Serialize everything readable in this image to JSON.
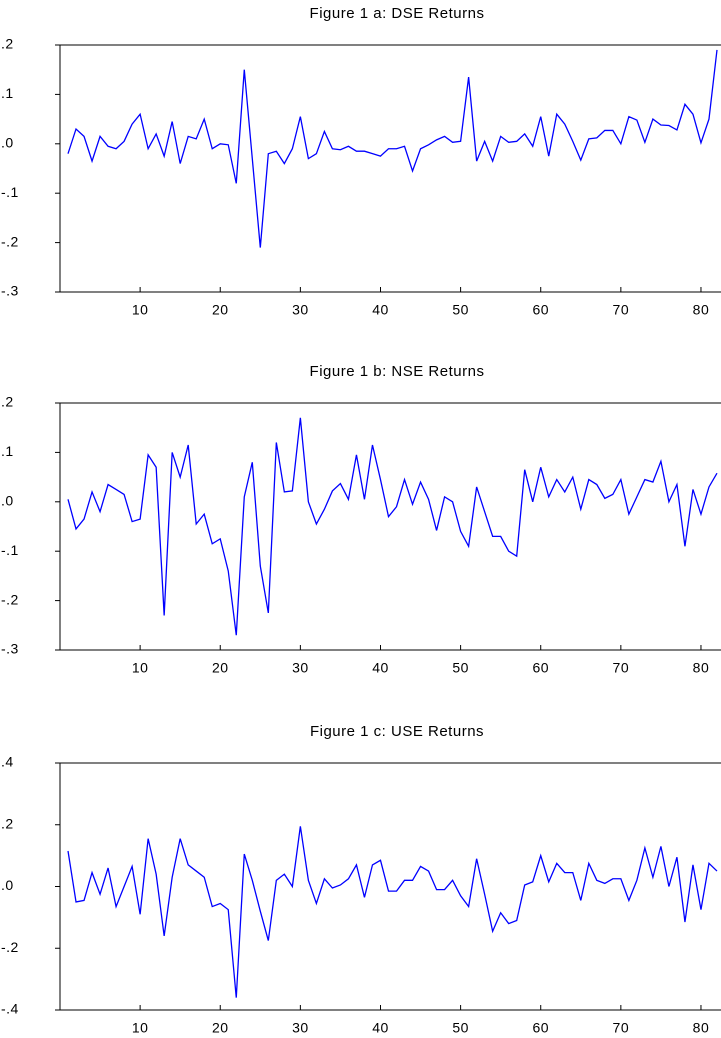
{
  "chart_data": [
    {
      "type": "line",
      "title": "Figure 1 a: DSE Returns",
      "x": [
        1,
        2,
        3,
        4,
        5,
        6,
        7,
        8,
        9,
        10,
        11,
        12,
        13,
        14,
        15,
        16,
        17,
        18,
        19,
        20,
        21,
        22,
        23,
        24,
        25,
        26,
        27,
        28,
        29,
        30,
        31,
        32,
        33,
        34,
        35,
        36,
        37,
        38,
        39,
        40,
        41,
        42,
        43,
        44,
        45,
        46,
        47,
        48,
        49,
        50,
        51,
        52,
        53,
        54,
        55,
        56,
        57,
        58,
        59,
        60,
        61,
        62,
        63,
        64,
        65,
        66,
        67,
        68,
        69,
        70,
        71,
        72,
        73,
        74,
        75,
        76,
        77,
        78,
        79,
        80,
        81,
        82
      ],
      "series": [
        {
          "name": "DSE",
          "color": "#0000ff",
          "values": [
            -0.02,
            0.03,
            0.015,
            -0.035,
            0.015,
            -0.005,
            -0.01,
            0.005,
            0.04,
            0.06,
            -0.01,
            0.02,
            -0.025,
            0.045,
            -0.04,
            0.015,
            0.01,
            0.05,
            -0.01,
            0.0,
            -0.002,
            -0.08,
            0.15,
            -0.03,
            -0.21,
            -0.02,
            -0.015,
            -0.04,
            -0.01,
            0.055,
            -0.03,
            -0.02,
            0.025,
            -0.01,
            -0.012,
            -0.005,
            -0.015,
            -0.015,
            -0.02,
            -0.025,
            -0.01,
            -0.01,
            -0.005,
            -0.055,
            -0.01,
            -0.002,
            0.008,
            0.015,
            0.003,
            0.005,
            0.135,
            -0.035,
            0.005,
            -0.035,
            0.015,
            0.003,
            0.005,
            0.02,
            -0.005,
            0.055,
            -0.025,
            0.06,
            0.04,
            0.005,
            -0.033,
            0.01,
            0.012,
            0.027,
            0.027,
            0.0,
            0.055,
            0.048,
            0.003,
            0.05,
            0.038,
            0.037,
            0.028,
            0.08,
            0.06,
            0.002,
            0.05,
            0.19
          ]
        }
      ],
      "xlim": [
        0,
        82.5
      ],
      "xticks": [
        10,
        20,
        30,
        40,
        50,
        60,
        70,
        80
      ],
      "ylim": [
        -0.3,
        0.2
      ],
      "yticks": [
        {
          "value": -0.3,
          "label": "-.3"
        },
        {
          "value": -0.2,
          "label": "-.2"
        },
        {
          "value": -0.1,
          "label": "-.1"
        },
        {
          "value": 0,
          "label": ".0"
        },
        {
          "value": 0.1,
          "label": ".1"
        },
        {
          "value": 0.2,
          "label": ".2"
        }
      ]
    },
    {
      "type": "line",
      "title": "Figure 1 b: NSE Returns",
      "x": [
        1,
        2,
        3,
        4,
        5,
        6,
        7,
        8,
        9,
        10,
        11,
        12,
        13,
        14,
        15,
        16,
        17,
        18,
        19,
        20,
        21,
        22,
        23,
        24,
        25,
        26,
        27,
        28,
        29,
        30,
        31,
        32,
        33,
        34,
        35,
        36,
        37,
        38,
        39,
        40,
        41,
        42,
        43,
        44,
        45,
        46,
        47,
        48,
        49,
        50,
        51,
        52,
        53,
        54,
        55,
        56,
        57,
        58,
        59,
        60,
        61,
        62,
        63,
        64,
        65,
        66,
        67,
        68,
        69,
        70,
        71,
        72,
        73,
        74,
        75,
        76,
        77,
        78,
        79,
        80,
        81,
        82
      ],
      "series": [
        {
          "name": "NSE",
          "color": "#0000ff",
          "values": [
            0.005,
            -0.055,
            -0.035,
            0.02,
            -0.02,
            0.035,
            0.025,
            0.015,
            -0.04,
            -0.035,
            0.095,
            0.07,
            -0.23,
            0.1,
            0.05,
            0.115,
            -0.045,
            -0.025,
            -0.085,
            -0.075,
            -0.14,
            -0.27,
            0.01,
            0.08,
            -0.13,
            -0.225,
            0.12,
            0.02,
            0.022,
            0.17,
            0.0,
            -0.045,
            -0.015,
            0.022,
            0.037,
            0.005,
            0.095,
            0.005,
            0.115,
            0.045,
            -0.03,
            -0.01,
            0.045,
            -0.005,
            0.04,
            0.005,
            -0.058,
            0.01,
            0.0,
            -0.06,
            -0.09,
            0.03,
            -0.02,
            -0.07,
            -0.07,
            -0.1,
            -0.11,
            0.065,
            0.0,
            0.07,
            0.01,
            0.045,
            0.02,
            0.05,
            -0.015,
            0.045,
            0.035,
            0.007,
            0.015,
            0.045,
            -0.025,
            0.01,
            0.045,
            0.04,
            0.082,
            0.0,
            0.035,
            -0.09,
            0.025,
            -0.025,
            0.03,
            0.058
          ]
        }
      ],
      "xlim": [
        0,
        82.5
      ],
      "xticks": [
        10,
        20,
        30,
        40,
        50,
        60,
        70,
        80
      ],
      "ylim": [
        -0.3,
        0.2
      ],
      "yticks": [
        {
          "value": -0.3,
          "label": "-.3"
        },
        {
          "value": -0.2,
          "label": "-.2"
        },
        {
          "value": -0.1,
          "label": "-.1"
        },
        {
          "value": 0,
          "label": ".0"
        },
        {
          "value": 0.1,
          "label": ".1"
        },
        {
          "value": 0.2,
          "label": ".2"
        }
      ]
    },
    {
      "type": "line",
      "title": "Figure 1 c: USE Returns",
      "x": [
        1,
        2,
        3,
        4,
        5,
        6,
        7,
        8,
        9,
        10,
        11,
        12,
        13,
        14,
        15,
        16,
        17,
        18,
        19,
        20,
        21,
        22,
        23,
        24,
        25,
        26,
        27,
        28,
        29,
        30,
        31,
        32,
        33,
        34,
        35,
        36,
        37,
        38,
        39,
        40,
        41,
        42,
        43,
        44,
        45,
        46,
        47,
        48,
        49,
        50,
        51,
        52,
        53,
        54,
        55,
        56,
        57,
        58,
        59,
        60,
        61,
        62,
        63,
        64,
        65,
        66,
        67,
        68,
        69,
        70,
        71,
        72,
        73,
        74,
        75,
        76,
        77,
        78,
        79,
        80,
        81,
        82
      ],
      "series": [
        {
          "name": "USE",
          "color": "#0000ff",
          "values": [
            0.115,
            -0.05,
            -0.045,
            0.045,
            -0.025,
            0.06,
            -0.065,
            0.0,
            0.065,
            -0.09,
            0.155,
            0.04,
            -0.16,
            0.03,
            0.155,
            0.07,
            0.05,
            0.03,
            -0.065,
            -0.055,
            -0.075,
            -0.36,
            0.105,
            0.02,
            -0.08,
            -0.175,
            0.02,
            0.04,
            0.0,
            0.195,
            0.02,
            -0.055,
            0.025,
            -0.005,
            0.005,
            0.025,
            0.07,
            -0.035,
            0.07,
            0.085,
            -0.015,
            -0.015,
            0.02,
            0.02,
            0.065,
            0.05,
            -0.01,
            -0.01,
            0.02,
            -0.03,
            -0.065,
            0.09,
            -0.025,
            -0.145,
            -0.085,
            -0.12,
            -0.11,
            0.005,
            0.015,
            0.1,
            0.015,
            0.075,
            0.045,
            0.045,
            -0.045,
            0.075,
            0.02,
            0.01,
            0.025,
            0.025,
            -0.045,
            0.02,
            0.125,
            0.03,
            0.13,
            0.0,
            0.095,
            -0.115,
            0.07,
            -0.075,
            0.075,
            0.05
          ]
        }
      ],
      "xlim": [
        0,
        82.5
      ],
      "xticks": [
        10,
        20,
        30,
        40,
        50,
        60,
        70,
        80
      ],
      "ylim": [
        -0.4,
        0.4
      ],
      "yticks": [
        {
          "value": -0.4,
          "label": "-.4"
        },
        {
          "value": -0.2,
          "label": "-.2"
        },
        {
          "value": 0,
          "label": ".0"
        },
        {
          "value": 0.2,
          "label": ".2"
        },
        {
          "value": 0.4,
          "label": ".4"
        }
      ]
    }
  ]
}
